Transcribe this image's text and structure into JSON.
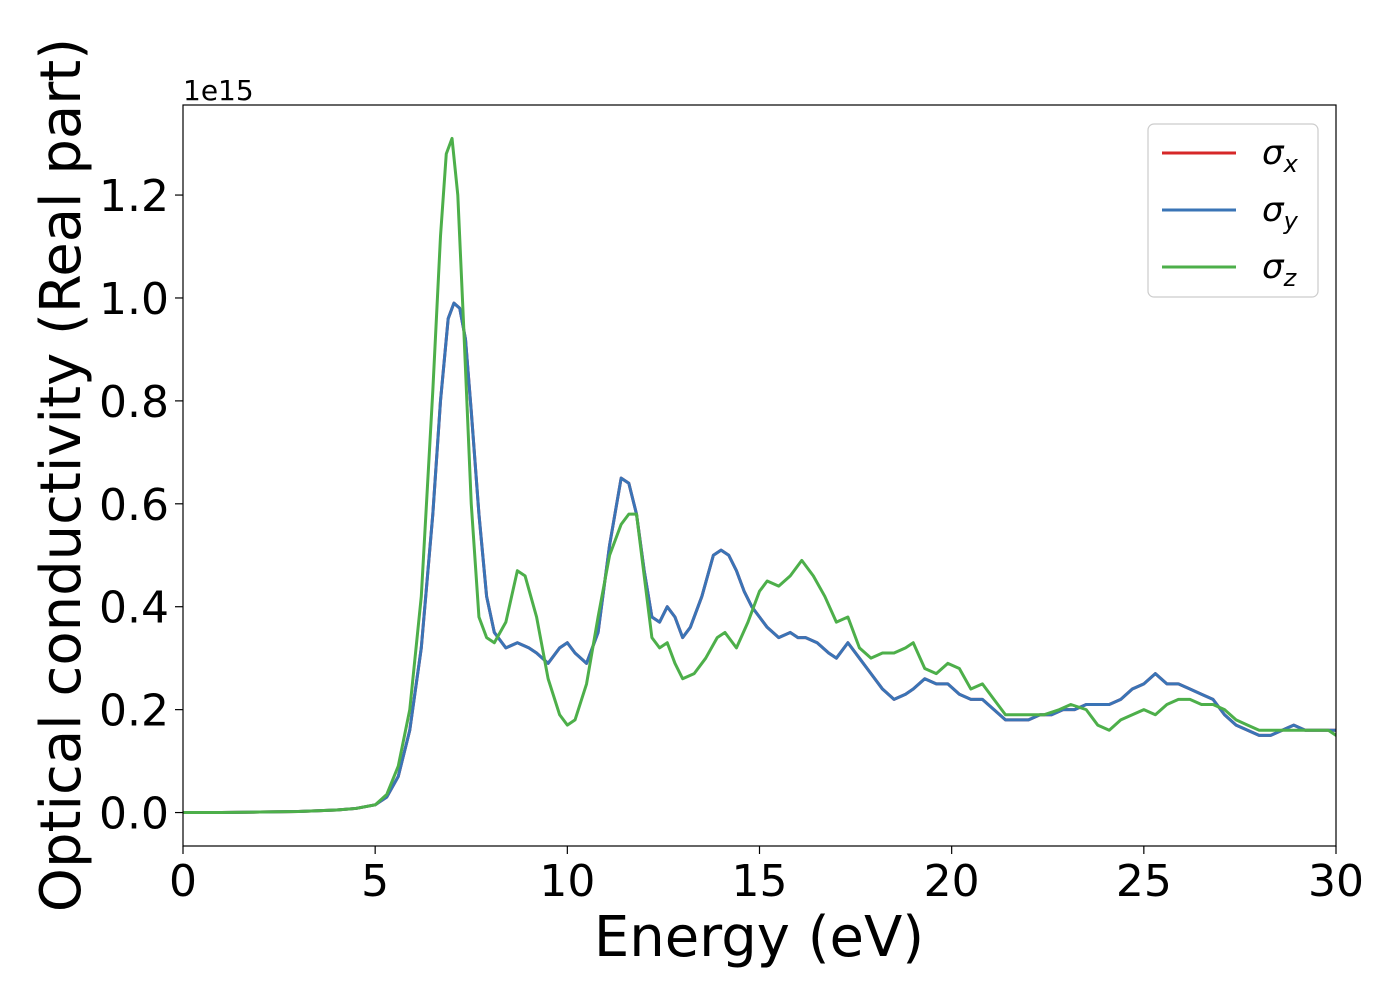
{
  "chart_data": {
    "type": "line",
    "xlabel": "Energy (eV)",
    "ylabel": "Optical conductivity (Real part)",
    "offset_text": "1e15",
    "xlim": [
      0,
      30
    ],
    "ylim": [
      -0.065,
      1.375
    ],
    "xticks": [
      "0",
      "5",
      "10",
      "15",
      "20",
      "25",
      "30"
    ],
    "yticks": [
      "0.0",
      "0.2",
      "0.4",
      "0.6",
      "0.8",
      "1.0",
      "1.2"
    ],
    "grid": false,
    "legend_position": "top-right",
    "series": [
      {
        "name": "σx",
        "name_base": "σ",
        "name_sub": "x",
        "color": "#d62728",
        "x": [
          0,
          1,
          2,
          3,
          4,
          4.5,
          5,
          5.3,
          5.6,
          5.9,
          6.2,
          6.5,
          6.7,
          6.9,
          7.05,
          7.2,
          7.35,
          7.5,
          7.7,
          7.9,
          8.1,
          8.4,
          8.7,
          9.0,
          9.2,
          9.5,
          9.8,
          10.0,
          10.2,
          10.5,
          10.8,
          11.1,
          11.4,
          11.6,
          11.8,
          12.0,
          12.2,
          12.4,
          12.6,
          12.8,
          13.0,
          13.2,
          13.5,
          13.8,
          14.0,
          14.2,
          14.4,
          14.6,
          14.8,
          15.0,
          15.2,
          15.5,
          15.8,
          16.0,
          16.2,
          16.5,
          16.8,
          17.0,
          17.3,
          17.6,
          17.9,
          18.2,
          18.5,
          18.8,
          19.0,
          19.3,
          19.6,
          19.9,
          20.2,
          20.5,
          20.8,
          21.1,
          21.4,
          21.7,
          22.0,
          22.3,
          22.6,
          22.9,
          23.2,
          23.5,
          23.8,
          24.1,
          24.4,
          24.7,
          25.0,
          25.3,
          25.6,
          25.9,
          26.2,
          26.5,
          26.8,
          27.1,
          27.4,
          27.7,
          28.0,
          28.3,
          28.6,
          28.9,
          29.2,
          29.5,
          29.8,
          30.0
        ],
        "values": [
          0,
          0,
          0.001,
          0.002,
          0.005,
          0.008,
          0.015,
          0.03,
          0.07,
          0.16,
          0.32,
          0.58,
          0.8,
          0.96,
          0.99,
          0.98,
          0.92,
          0.78,
          0.58,
          0.42,
          0.35,
          0.32,
          0.33,
          0.32,
          0.31,
          0.29,
          0.32,
          0.33,
          0.31,
          0.29,
          0.35,
          0.52,
          0.65,
          0.64,
          0.58,
          0.47,
          0.38,
          0.37,
          0.4,
          0.38,
          0.34,
          0.36,
          0.42,
          0.5,
          0.51,
          0.5,
          0.47,
          0.43,
          0.4,
          0.38,
          0.36,
          0.34,
          0.35,
          0.34,
          0.34,
          0.33,
          0.31,
          0.3,
          0.33,
          0.3,
          0.27,
          0.24,
          0.22,
          0.23,
          0.24,
          0.26,
          0.25,
          0.25,
          0.23,
          0.22,
          0.22,
          0.2,
          0.18,
          0.18,
          0.18,
          0.19,
          0.19,
          0.2,
          0.2,
          0.21,
          0.21,
          0.21,
          0.22,
          0.24,
          0.25,
          0.27,
          0.25,
          0.25,
          0.24,
          0.23,
          0.22,
          0.19,
          0.17,
          0.16,
          0.15,
          0.15,
          0.16,
          0.17,
          0.16,
          0.16,
          0.16,
          0.16
        ]
      },
      {
        "name": "σy",
        "name_base": "σ",
        "name_sub": "y",
        "color": "#3a74b6",
        "x": [
          0,
          1,
          2,
          3,
          4,
          4.5,
          5,
          5.3,
          5.6,
          5.9,
          6.2,
          6.5,
          6.7,
          6.9,
          7.05,
          7.2,
          7.35,
          7.5,
          7.7,
          7.9,
          8.1,
          8.4,
          8.7,
          9.0,
          9.2,
          9.5,
          9.8,
          10.0,
          10.2,
          10.5,
          10.8,
          11.1,
          11.4,
          11.6,
          11.8,
          12.0,
          12.2,
          12.4,
          12.6,
          12.8,
          13.0,
          13.2,
          13.5,
          13.8,
          14.0,
          14.2,
          14.4,
          14.6,
          14.8,
          15.0,
          15.2,
          15.5,
          15.8,
          16.0,
          16.2,
          16.5,
          16.8,
          17.0,
          17.3,
          17.6,
          17.9,
          18.2,
          18.5,
          18.8,
          19.0,
          19.3,
          19.6,
          19.9,
          20.2,
          20.5,
          20.8,
          21.1,
          21.4,
          21.7,
          22.0,
          22.3,
          22.6,
          22.9,
          23.2,
          23.5,
          23.8,
          24.1,
          24.4,
          24.7,
          25.0,
          25.3,
          25.6,
          25.9,
          26.2,
          26.5,
          26.8,
          27.1,
          27.4,
          27.7,
          28.0,
          28.3,
          28.6,
          28.9,
          29.2,
          29.5,
          29.8,
          30.0
        ],
        "values": [
          0,
          0,
          0.001,
          0.002,
          0.005,
          0.008,
          0.015,
          0.03,
          0.07,
          0.16,
          0.32,
          0.58,
          0.8,
          0.96,
          0.99,
          0.98,
          0.92,
          0.78,
          0.58,
          0.42,
          0.35,
          0.32,
          0.33,
          0.32,
          0.31,
          0.29,
          0.32,
          0.33,
          0.31,
          0.29,
          0.35,
          0.52,
          0.65,
          0.64,
          0.58,
          0.47,
          0.38,
          0.37,
          0.4,
          0.38,
          0.34,
          0.36,
          0.42,
          0.5,
          0.51,
          0.5,
          0.47,
          0.43,
          0.4,
          0.38,
          0.36,
          0.34,
          0.35,
          0.34,
          0.34,
          0.33,
          0.31,
          0.3,
          0.33,
          0.3,
          0.27,
          0.24,
          0.22,
          0.23,
          0.24,
          0.26,
          0.25,
          0.25,
          0.23,
          0.22,
          0.22,
          0.2,
          0.18,
          0.18,
          0.18,
          0.19,
          0.19,
          0.2,
          0.2,
          0.21,
          0.21,
          0.21,
          0.22,
          0.24,
          0.25,
          0.27,
          0.25,
          0.25,
          0.24,
          0.23,
          0.22,
          0.19,
          0.17,
          0.16,
          0.15,
          0.15,
          0.16,
          0.17,
          0.16,
          0.16,
          0.16,
          0.16
        ]
      },
      {
        "name": "σz",
        "name_base": "σ",
        "name_sub": "z",
        "color": "#4daf4a",
        "x": [
          0,
          1,
          2,
          3,
          4,
          4.5,
          5,
          5.3,
          5.6,
          5.9,
          6.2,
          6.5,
          6.7,
          6.85,
          7.0,
          7.15,
          7.3,
          7.5,
          7.7,
          7.9,
          8.1,
          8.4,
          8.7,
          8.9,
          9.2,
          9.5,
          9.8,
          10.0,
          10.2,
          10.5,
          10.8,
          11.1,
          11.4,
          11.6,
          11.8,
          12.0,
          12.2,
          12.4,
          12.6,
          12.8,
          13.0,
          13.3,
          13.6,
          13.9,
          14.1,
          14.4,
          14.7,
          15.0,
          15.2,
          15.5,
          15.8,
          16.1,
          16.4,
          16.7,
          17.0,
          17.3,
          17.6,
          17.9,
          18.2,
          18.5,
          18.8,
          19.0,
          19.3,
          19.6,
          19.9,
          20.2,
          20.5,
          20.8,
          21.1,
          21.4,
          21.7,
          22.0,
          22.4,
          22.8,
          23.1,
          23.5,
          23.8,
          24.1,
          24.4,
          24.7,
          25.0,
          25.3,
          25.6,
          25.9,
          26.2,
          26.5,
          26.8,
          27.1,
          27.4,
          27.7,
          28.0,
          28.3,
          28.6,
          28.9,
          29.2,
          29.5,
          29.8,
          30.0
        ],
        "values": [
          0,
          0,
          0.001,
          0.002,
          0.005,
          0.008,
          0.015,
          0.035,
          0.09,
          0.2,
          0.42,
          0.82,
          1.12,
          1.28,
          1.31,
          1.2,
          0.95,
          0.6,
          0.38,
          0.34,
          0.33,
          0.37,
          0.47,
          0.46,
          0.38,
          0.26,
          0.19,
          0.17,
          0.18,
          0.25,
          0.38,
          0.5,
          0.56,
          0.58,
          0.58,
          0.46,
          0.34,
          0.32,
          0.33,
          0.29,
          0.26,
          0.27,
          0.3,
          0.34,
          0.35,
          0.32,
          0.37,
          0.43,
          0.45,
          0.44,
          0.46,
          0.49,
          0.46,
          0.42,
          0.37,
          0.38,
          0.32,
          0.3,
          0.31,
          0.31,
          0.32,
          0.33,
          0.28,
          0.27,
          0.29,
          0.28,
          0.24,
          0.25,
          0.22,
          0.19,
          0.19,
          0.19,
          0.19,
          0.2,
          0.21,
          0.2,
          0.17,
          0.16,
          0.18,
          0.19,
          0.2,
          0.19,
          0.21,
          0.22,
          0.22,
          0.21,
          0.21,
          0.2,
          0.18,
          0.17,
          0.16,
          0.16,
          0.16,
          0.16,
          0.16,
          0.16,
          0.16,
          0.15
        ]
      }
    ]
  }
}
